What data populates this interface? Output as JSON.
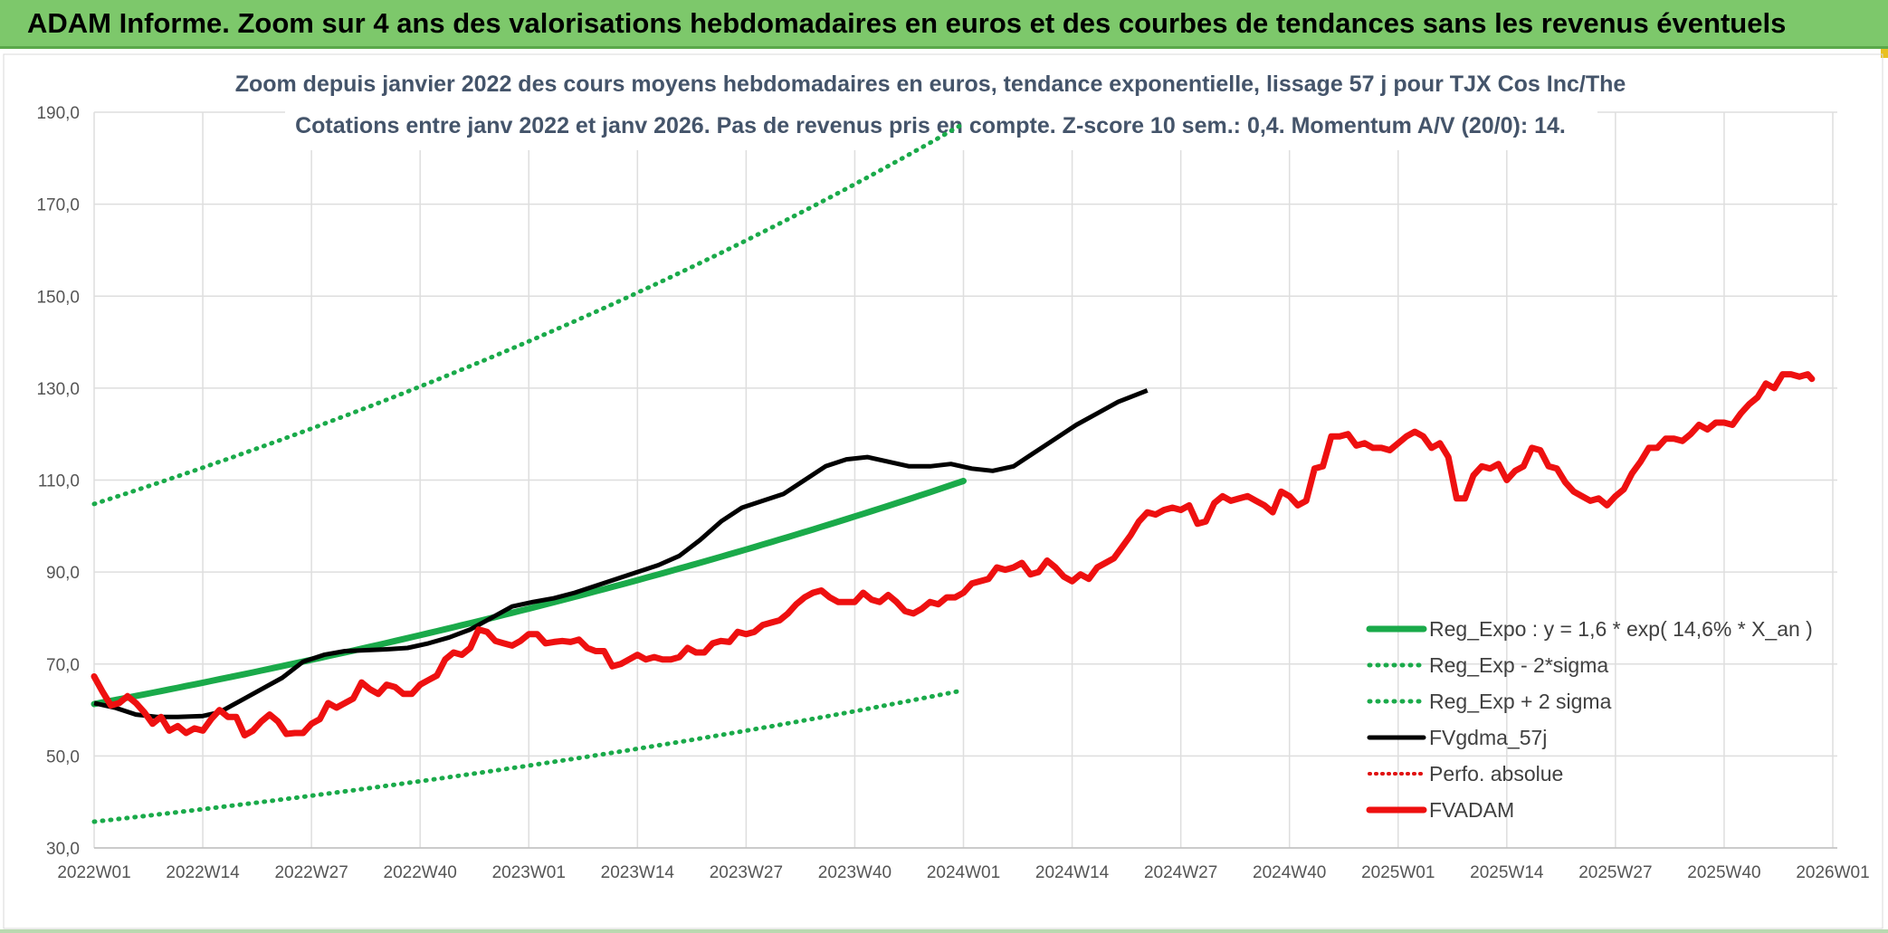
{
  "banner": {
    "title": "ADAM Informe. Zoom sur 4 ans des valorisations hebdomadaires en euros et des courbes de tendances sans les revenus éventuels"
  },
  "colors": {
    "banner": "#7dc86b",
    "trend": "#1aaa4a",
    "band": "#1aaa4a",
    "smooth": "#000000",
    "perf": "#e01010",
    "fvadam": "#ee1010",
    "grid": "#dedede",
    "axis_text": "#555555",
    "title_text": "#44546a"
  },
  "chart_data": {
    "type": "line",
    "title_lines": [
      "Zoom depuis janvier 2022 des cours moyens hebdomadaires en euros, tendance exponentielle, lissage 57 j pour TJX Cos Inc/The",
      "Cotations entre janv 2022 et janv 2026. Pas de revenus pris en compte. Z-score 10 sem.: 0,4. Momentum A/V (20/0): 14."
    ],
    "ylim": [
      30,
      190
    ],
    "y_ticks": [
      "30,0",
      "50,0",
      "70,0",
      "90,0",
      "110,0",
      "130,0",
      "150,0",
      "170,0",
      "190,0"
    ],
    "x_ticks": [
      "2022W01",
      "2022W14",
      "2022W27",
      "2022W40",
      "2023W01",
      "2023W14",
      "2023W27",
      "2023W40",
      "2024W01",
      "2024W14",
      "2024W27",
      "2024W40",
      "2025W01",
      "2025W14",
      "2025W27",
      "2025W40",
      "2026W01"
    ],
    "grid": true,
    "legend_position": "bottom-right",
    "series": [
      {
        "name": "Reg_Expo : y = 1,6 * exp( 14,6% *  X_an )",
        "style": "solid-thick",
        "points": [
          [
            0,
            61.3
          ],
          [
            208,
            109.8
          ]
        ],
        "exponential": true
      },
      {
        "name": "Reg_Exp - 2*sigma",
        "style": "dotted",
        "points": [
          [
            0,
            35.7
          ],
          [
            208,
            64.3
          ]
        ],
        "exponential": true
      },
      {
        "name": "Reg_Exp + 2 sigma",
        "style": "dotted",
        "points": [
          [
            0,
            104.8
          ],
          [
            208,
            187.5
          ]
        ],
        "exponential": true
      },
      {
        "name": "FVgdma_57j",
        "style": "solid",
        "points": [
          [
            0,
            61.5
          ],
          [
            5,
            60.5
          ],
          [
            10,
            59
          ],
          [
            15,
            58.5
          ],
          [
            20,
            58.5
          ],
          [
            26,
            58.7
          ],
          [
            30,
            59.5
          ],
          [
            35,
            62
          ],
          [
            40,
            64.5
          ],
          [
            45,
            67
          ],
          [
            50,
            70.5
          ],
          [
            55,
            72
          ],
          [
            60,
            72.8
          ],
          [
            65,
            73
          ],
          [
            70,
            73.2
          ],
          [
            75,
            73.5
          ],
          [
            80,
            74.5
          ],
          [
            85,
            75.8
          ],
          [
            90,
            77.5
          ],
          [
            95,
            80
          ],
          [
            100,
            82.5
          ],
          [
            105,
            83.5
          ],
          [
            110,
            84.3
          ],
          [
            115,
            85.5
          ],
          [
            120,
            87
          ],
          [
            125,
            88.5
          ],
          [
            130,
            90
          ],
          [
            135,
            91.5
          ],
          [
            140,
            93.5
          ],
          [
            145,
            97
          ],
          [
            150,
            101
          ],
          [
            155,
            104
          ],
          [
            160,
            105.5
          ],
          [
            165,
            107
          ],
          [
            170,
            110
          ],
          [
            175,
            113
          ],
          [
            180,
            114.5
          ],
          [
            185,
            115
          ],
          [
            190,
            114
          ],
          [
            195,
            113
          ],
          [
            200,
            113
          ],
          [
            205,
            113.5
          ],
          [
            210,
            112.5
          ],
          [
            215,
            112
          ],
          [
            220,
            113
          ],
          [
            225,
            116
          ],
          [
            230,
            119
          ],
          [
            235,
            122
          ],
          [
            240,
            124.5
          ],
          [
            245,
            127
          ],
          [
            252,
            129.5
          ]
        ]
      },
      {
        "name": "Perfo. absolue",
        "style": "dotted-red",
        "points": []
      },
      {
        "name": "FVADAM",
        "style": "solid-thick",
        "points": [
          [
            0,
            67.3
          ],
          [
            2,
            64
          ],
          [
            4,
            61
          ],
          [
            6,
            61.5
          ],
          [
            8,
            63
          ],
          [
            10,
            61.5
          ],
          [
            12,
            59.5
          ],
          [
            14,
            57
          ],
          [
            16,
            58.5
          ],
          [
            18,
            55.5
          ],
          [
            20,
            56.5
          ],
          [
            22,
            55
          ],
          [
            24,
            56
          ],
          [
            26,
            55.5
          ],
          [
            28,
            58
          ],
          [
            30,
            60
          ],
          [
            32,
            58.5
          ],
          [
            34,
            58.5
          ],
          [
            36,
            54.5
          ],
          [
            38,
            55.5
          ],
          [
            40,
            57.5
          ],
          [
            42,
            59
          ],
          [
            44,
            57.5
          ],
          [
            46,
            54.8
          ],
          [
            48,
            55
          ],
          [
            50,
            55
          ],
          [
            52,
            57
          ],
          [
            54,
            58
          ],
          [
            56,
            61.5
          ],
          [
            58,
            60.5
          ],
          [
            60,
            61.5
          ],
          [
            62,
            62.5
          ],
          [
            64,
            66
          ],
          [
            66,
            64.5
          ],
          [
            68,
            63.5
          ],
          [
            70,
            65.5
          ],
          [
            72,
            65
          ],
          [
            74,
            63.5
          ],
          [
            76,
            63.5
          ],
          [
            78,
            65.5
          ],
          [
            80,
            66.5
          ],
          [
            82,
            67.5
          ],
          [
            84,
            71
          ],
          [
            86,
            72.5
          ],
          [
            88,
            72
          ],
          [
            90,
            73.5
          ],
          [
            92,
            77.5
          ],
          [
            94,
            77
          ],
          [
            96,
            75
          ],
          [
            98,
            74.5
          ],
          [
            100,
            74
          ],
          [
            102,
            75
          ],
          [
            104,
            76.5
          ],
          [
            106,
            76.5
          ],
          [
            108,
            74.5
          ],
          [
            110,
            74.8
          ],
          [
            112,
            75
          ],
          [
            114,
            74.8
          ],
          [
            116,
            75.3
          ],
          [
            118,
            73.5
          ],
          [
            120,
            72.8
          ],
          [
            122,
            72.8
          ],
          [
            124,
            69.5
          ],
          [
            126,
            70
          ],
          [
            128,
            71
          ],
          [
            130,
            72
          ],
          [
            132,
            71
          ],
          [
            134,
            71.5
          ],
          [
            136,
            71
          ],
          [
            138,
            71
          ],
          [
            140,
            71.5
          ],
          [
            142,
            73.5
          ],
          [
            144,
            72.5
          ],
          [
            146,
            72.5
          ],
          [
            148,
            74.5
          ],
          [
            150,
            75
          ],
          [
            152,
            74.8
          ],
          [
            154,
            77
          ],
          [
            156,
            76.5
          ],
          [
            158,
            77
          ],
          [
            160,
            78.5
          ],
          [
            162,
            79
          ],
          [
            164,
            79.5
          ],
          [
            166,
            81
          ],
          [
            168,
            83
          ],
          [
            170,
            84.5
          ],
          [
            172,
            85.5
          ],
          [
            174,
            86
          ],
          [
            176,
            84.5
          ],
          [
            178,
            83.5
          ],
          [
            180,
            83.5
          ],
          [
            182,
            83.5
          ],
          [
            184,
            85.5
          ],
          [
            186,
            84
          ],
          [
            188,
            83.5
          ],
          [
            190,
            85
          ],
          [
            192,
            83.5
          ],
          [
            194,
            81.5
          ],
          [
            196,
            81
          ],
          [
            198,
            82
          ],
          [
            200,
            83.5
          ],
          [
            202,
            83
          ],
          [
            204,
            84.5
          ],
          [
            206,
            84.5
          ],
          [
            208,
            85.5
          ],
          [
            210,
            87.5
          ],
          [
            212,
            88
          ],
          [
            214,
            88.5
          ],
          [
            216,
            91
          ],
          [
            218,
            90.5
          ],
          [
            220,
            91
          ],
          [
            222,
            92
          ],
          [
            224,
            89.5
          ],
          [
            226,
            90
          ],
          [
            228,
            92.5
          ],
          [
            230,
            91
          ],
          [
            232,
            89
          ],
          [
            234,
            88
          ],
          [
            236,
            89.5
          ],
          [
            238,
            88.5
          ],
          [
            240,
            91
          ],
          [
            242,
            92
          ],
          [
            244,
            93
          ],
          [
            246,
            95.5
          ],
          [
            248,
            98
          ],
          [
            250,
            101
          ],
          [
            252,
            103
          ],
          [
            254,
            102.5
          ],
          [
            256,
            103.5
          ],
          [
            258,
            104
          ],
          [
            260,
            103.5
          ],
          [
            262,
            104.5
          ],
          [
            264,
            100.5
          ],
          [
            266,
            101
          ],
          [
            268,
            105
          ],
          [
            270,
            106.5
          ],
          [
            272,
            105.5
          ],
          [
            274,
            106
          ],
          [
            276,
            106.5
          ],
          [
            278,
            105.5
          ],
          [
            280,
            104.5
          ],
          [
            282,
            103
          ],
          [
            284,
            107.5
          ],
          [
            286,
            106.5
          ],
          [
            288,
            104.5
          ],
          [
            290,
            105.5
          ],
          [
            292,
            112.5
          ],
          [
            294,
            113
          ],
          [
            296,
            119.5
          ],
          [
            298,
            119.5
          ],
          [
            300,
            120
          ],
          [
            302,
            117.5
          ],
          [
            304,
            118
          ],
          [
            306,
            117
          ],
          [
            308,
            117
          ],
          [
            310,
            116.5
          ],
          [
            312,
            118
          ],
          [
            314,
            119.5
          ],
          [
            316,
            120.5
          ],
          [
            318,
            119.5
          ],
          [
            320,
            117
          ],
          [
            322,
            118
          ],
          [
            324,
            115
          ],
          [
            326,
            106
          ],
          [
            328,
            106
          ],
          [
            330,
            111
          ],
          [
            332,
            113
          ],
          [
            334,
            112.5
          ],
          [
            336,
            113.5
          ],
          [
            338,
            110
          ],
          [
            340,
            112
          ],
          [
            342,
            113
          ],
          [
            344,
            117
          ],
          [
            346,
            116.5
          ],
          [
            348,
            113
          ],
          [
            350,
            112.5
          ],
          [
            352,
            109.5
          ],
          [
            354,
            107.5
          ],
          [
            356,
            106.5
          ],
          [
            358,
            105.5
          ],
          [
            360,
            106
          ],
          [
            362,
            104.5
          ],
          [
            364,
            106.5
          ],
          [
            366,
            108
          ],
          [
            368,
            111.5
          ],
          [
            370,
            114
          ],
          [
            372,
            117
          ],
          [
            374,
            117
          ],
          [
            376,
            119
          ],
          [
            378,
            119
          ],
          [
            380,
            118.5
          ],
          [
            382,
            120
          ],
          [
            384,
            122
          ],
          [
            386,
            121
          ],
          [
            388,
            122.5
          ],
          [
            390,
            122.5
          ],
          [
            392,
            122
          ],
          [
            394,
            124.5
          ],
          [
            396,
            126.5
          ],
          [
            398,
            128
          ],
          [
            400,
            131
          ],
          [
            402,
            130
          ],
          [
            404,
            133
          ],
          [
            406,
            133
          ],
          [
            408,
            132.5
          ],
          [
            410,
            133
          ],
          [
            411,
            132
          ]
        ]
      }
    ]
  }
}
